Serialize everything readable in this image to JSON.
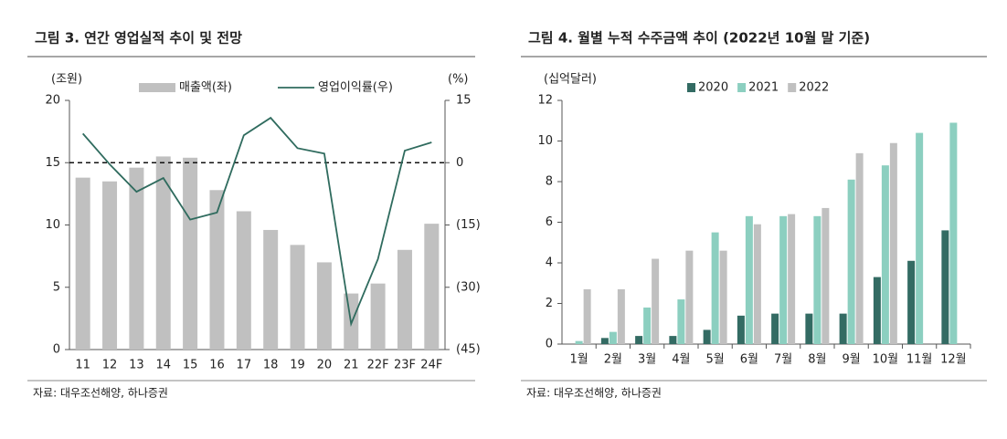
{
  "chart_data": [
    {
      "type": "combo",
      "title": "그림 3. 연간 영업실적 추이 및 전망",
      "source": "자료: 대우조선해양, 하나증권",
      "y_label": "(조원)",
      "y2_label": "(%)",
      "categories": [
        "11",
        "12",
        "13",
        "14",
        "15",
        "16",
        "17",
        "18",
        "19",
        "20",
        "21",
        "22F",
        "23F",
        "24F"
      ],
      "series": [
        {
          "name": "매출액(좌)",
          "type": "bar",
          "color": "#c0c0c0",
          "values": [
            13.8,
            13.5,
            14.6,
            15.5,
            15.4,
            12.8,
            11.1,
            9.6,
            8.4,
            7.0,
            4.5,
            5.3,
            8.0,
            10.1
          ]
        },
        {
          "name": "영업이익률(우)",
          "type": "line",
          "axis": "y2",
          "color": "#2f6b5e",
          "values": [
            7,
            -0.4,
            -7,
            -3.7,
            -13.7,
            -12,
            6.6,
            10.8,
            3.5,
            2.2,
            -38.8,
            -23.2,
            2.9,
            4.9
          ]
        }
      ],
      "ylim": [
        0,
        20
      ],
      "yticks": [
        0,
        5,
        10,
        15,
        20
      ],
      "y2lim": [
        -45,
        15
      ],
      "y2ticks": [
        {
          "value": -45,
          "label": "(45)"
        },
        {
          "value": -30,
          "label": "(30)"
        },
        {
          "value": -15,
          "label": "(15)"
        },
        0,
        15
      ],
      "reference_line": {
        "axis": "y2",
        "value": 0,
        "style": "dashed"
      },
      "grid": false
    },
    {
      "type": "bar",
      "title": "그림 4. 월별 누적 수주금액 추이 (2022년 10월 말 기준)",
      "source": "자료: 대우조선해양, 하나증권",
      "y_label": "(십억달러)",
      "categories": [
        "1월",
        "2월",
        "3월",
        "4월",
        "5월",
        "6월",
        "7월",
        "8월",
        "9월",
        "10월",
        "11월",
        "12월"
      ],
      "series": [
        {
          "name": "2020",
          "color": "#336b63",
          "values": [
            0,
            0.3,
            0.4,
            0.4,
            0.7,
            1.4,
            1.5,
            1.5,
            1.5,
            3.3,
            4.1,
            5.6
          ]
        },
        {
          "name": "2021",
          "color": "#8ccfc0",
          "values": [
            0.15,
            0.6,
            1.8,
            2.2,
            5.5,
            6.3,
            6.3,
            6.3,
            8.1,
            8.8,
            10.4,
            10.9
          ]
        },
        {
          "name": "2022",
          "color": "#c0c0c0",
          "values": [
            2.7,
            2.7,
            4.2,
            4.6,
            4.6,
            5.9,
            6.4,
            6.7,
            9.4,
            9.9,
            null,
            null
          ]
        }
      ],
      "ylim": [
        0,
        12
      ],
      "yticks": [
        0,
        2,
        4,
        6,
        8,
        10,
        12
      ],
      "grid": false
    }
  ]
}
